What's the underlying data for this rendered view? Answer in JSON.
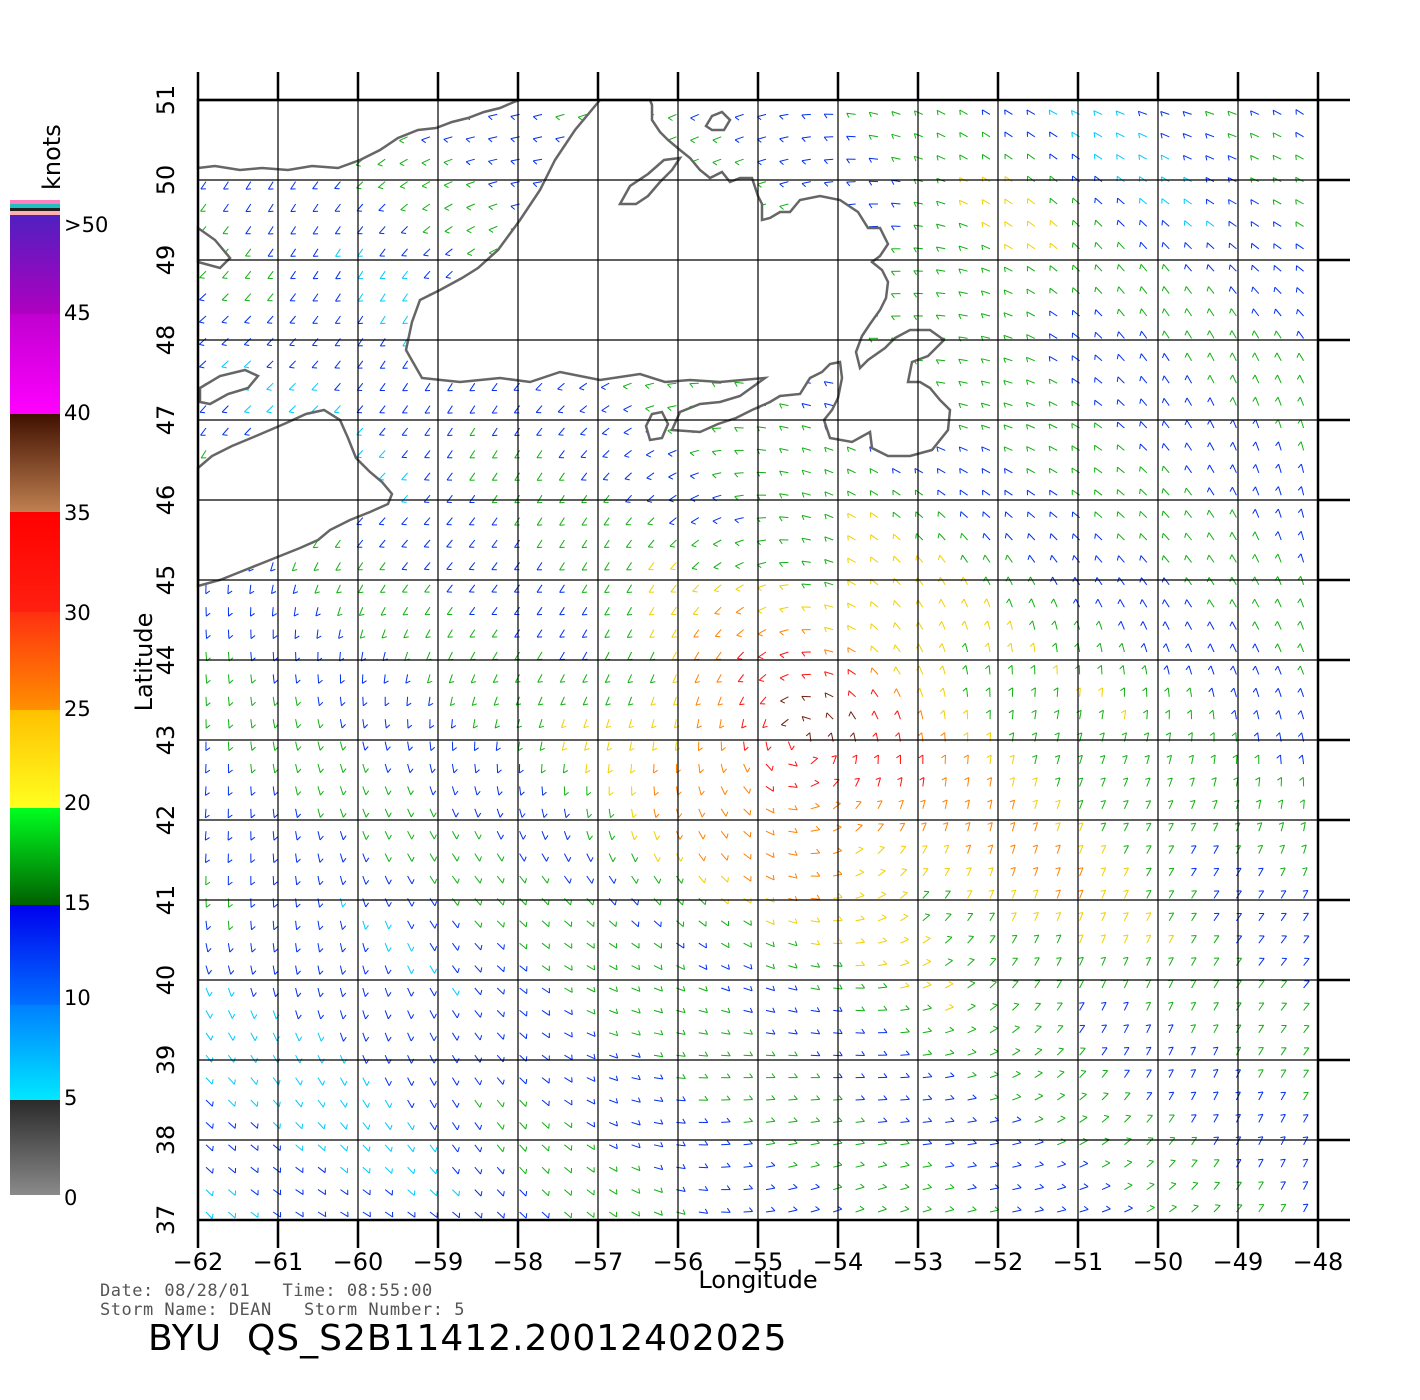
{
  "map": {
    "x_axis_label": "Longitude",
    "y_axis_label": "Latitude",
    "lon_ticks": [
      "−62",
      "−61",
      "−60",
      "−59",
      "−58",
      "−57",
      "−56",
      "−55",
      "−54",
      "−53",
      "−52",
      "−51",
      "−50",
      "−49",
      "−48"
    ],
    "lat_ticks": [
      "37",
      "38",
      "39",
      "40",
      "41",
      "42",
      "43",
      "44",
      "45",
      "46",
      "47",
      "48",
      "49",
      "50",
      "51"
    ],
    "lon_range": [
      -62,
      -48
    ],
    "lat_range": [
      37,
      51
    ],
    "coastline_color": "#666666",
    "grid": true
  },
  "legend": {
    "unit_label": "knots",
    "bands": [
      {
        "label": "0",
        "color_low": "#8a8a8a",
        "color_high": "#2a2a2a"
      },
      {
        "label": "5",
        "color_low": "#00e8ff",
        "color_high": "#0080ff"
      },
      {
        "label": "10",
        "color_low": "#0070ff",
        "color_high": "#0000ee"
      },
      {
        "label": "15",
        "color_low": "#006000",
        "color_high": "#00ff20"
      },
      {
        "label": "20",
        "color_low": "#ffff20",
        "color_high": "#ffc000"
      },
      {
        "label": "25",
        "color_low": "#ff9000",
        "color_high": "#ff3010"
      },
      {
        "label": "30",
        "color_low": "#ff2010",
        "color_high": "#ff0000"
      },
      {
        "label": "35",
        "color_low": "#c08050",
        "color_high": "#401000"
      },
      {
        "label": "40",
        "color_low": "#ff00ff",
        "color_high": "#c000d0"
      },
      {
        "label": "45",
        "color_low": "#b000c0",
        "color_high": "#5020c0"
      },
      {
        "label": ">50",
        "color_low": "",
        "color_high": ""
      }
    ]
  },
  "footer": {
    "date_line": "Date: 08/28/01   Time: 08:55:00",
    "storm_line": "Storm Name: DEAN   Storm Number: 5",
    "product_title": "BYU  QS_S2B11412.20012402025"
  }
}
